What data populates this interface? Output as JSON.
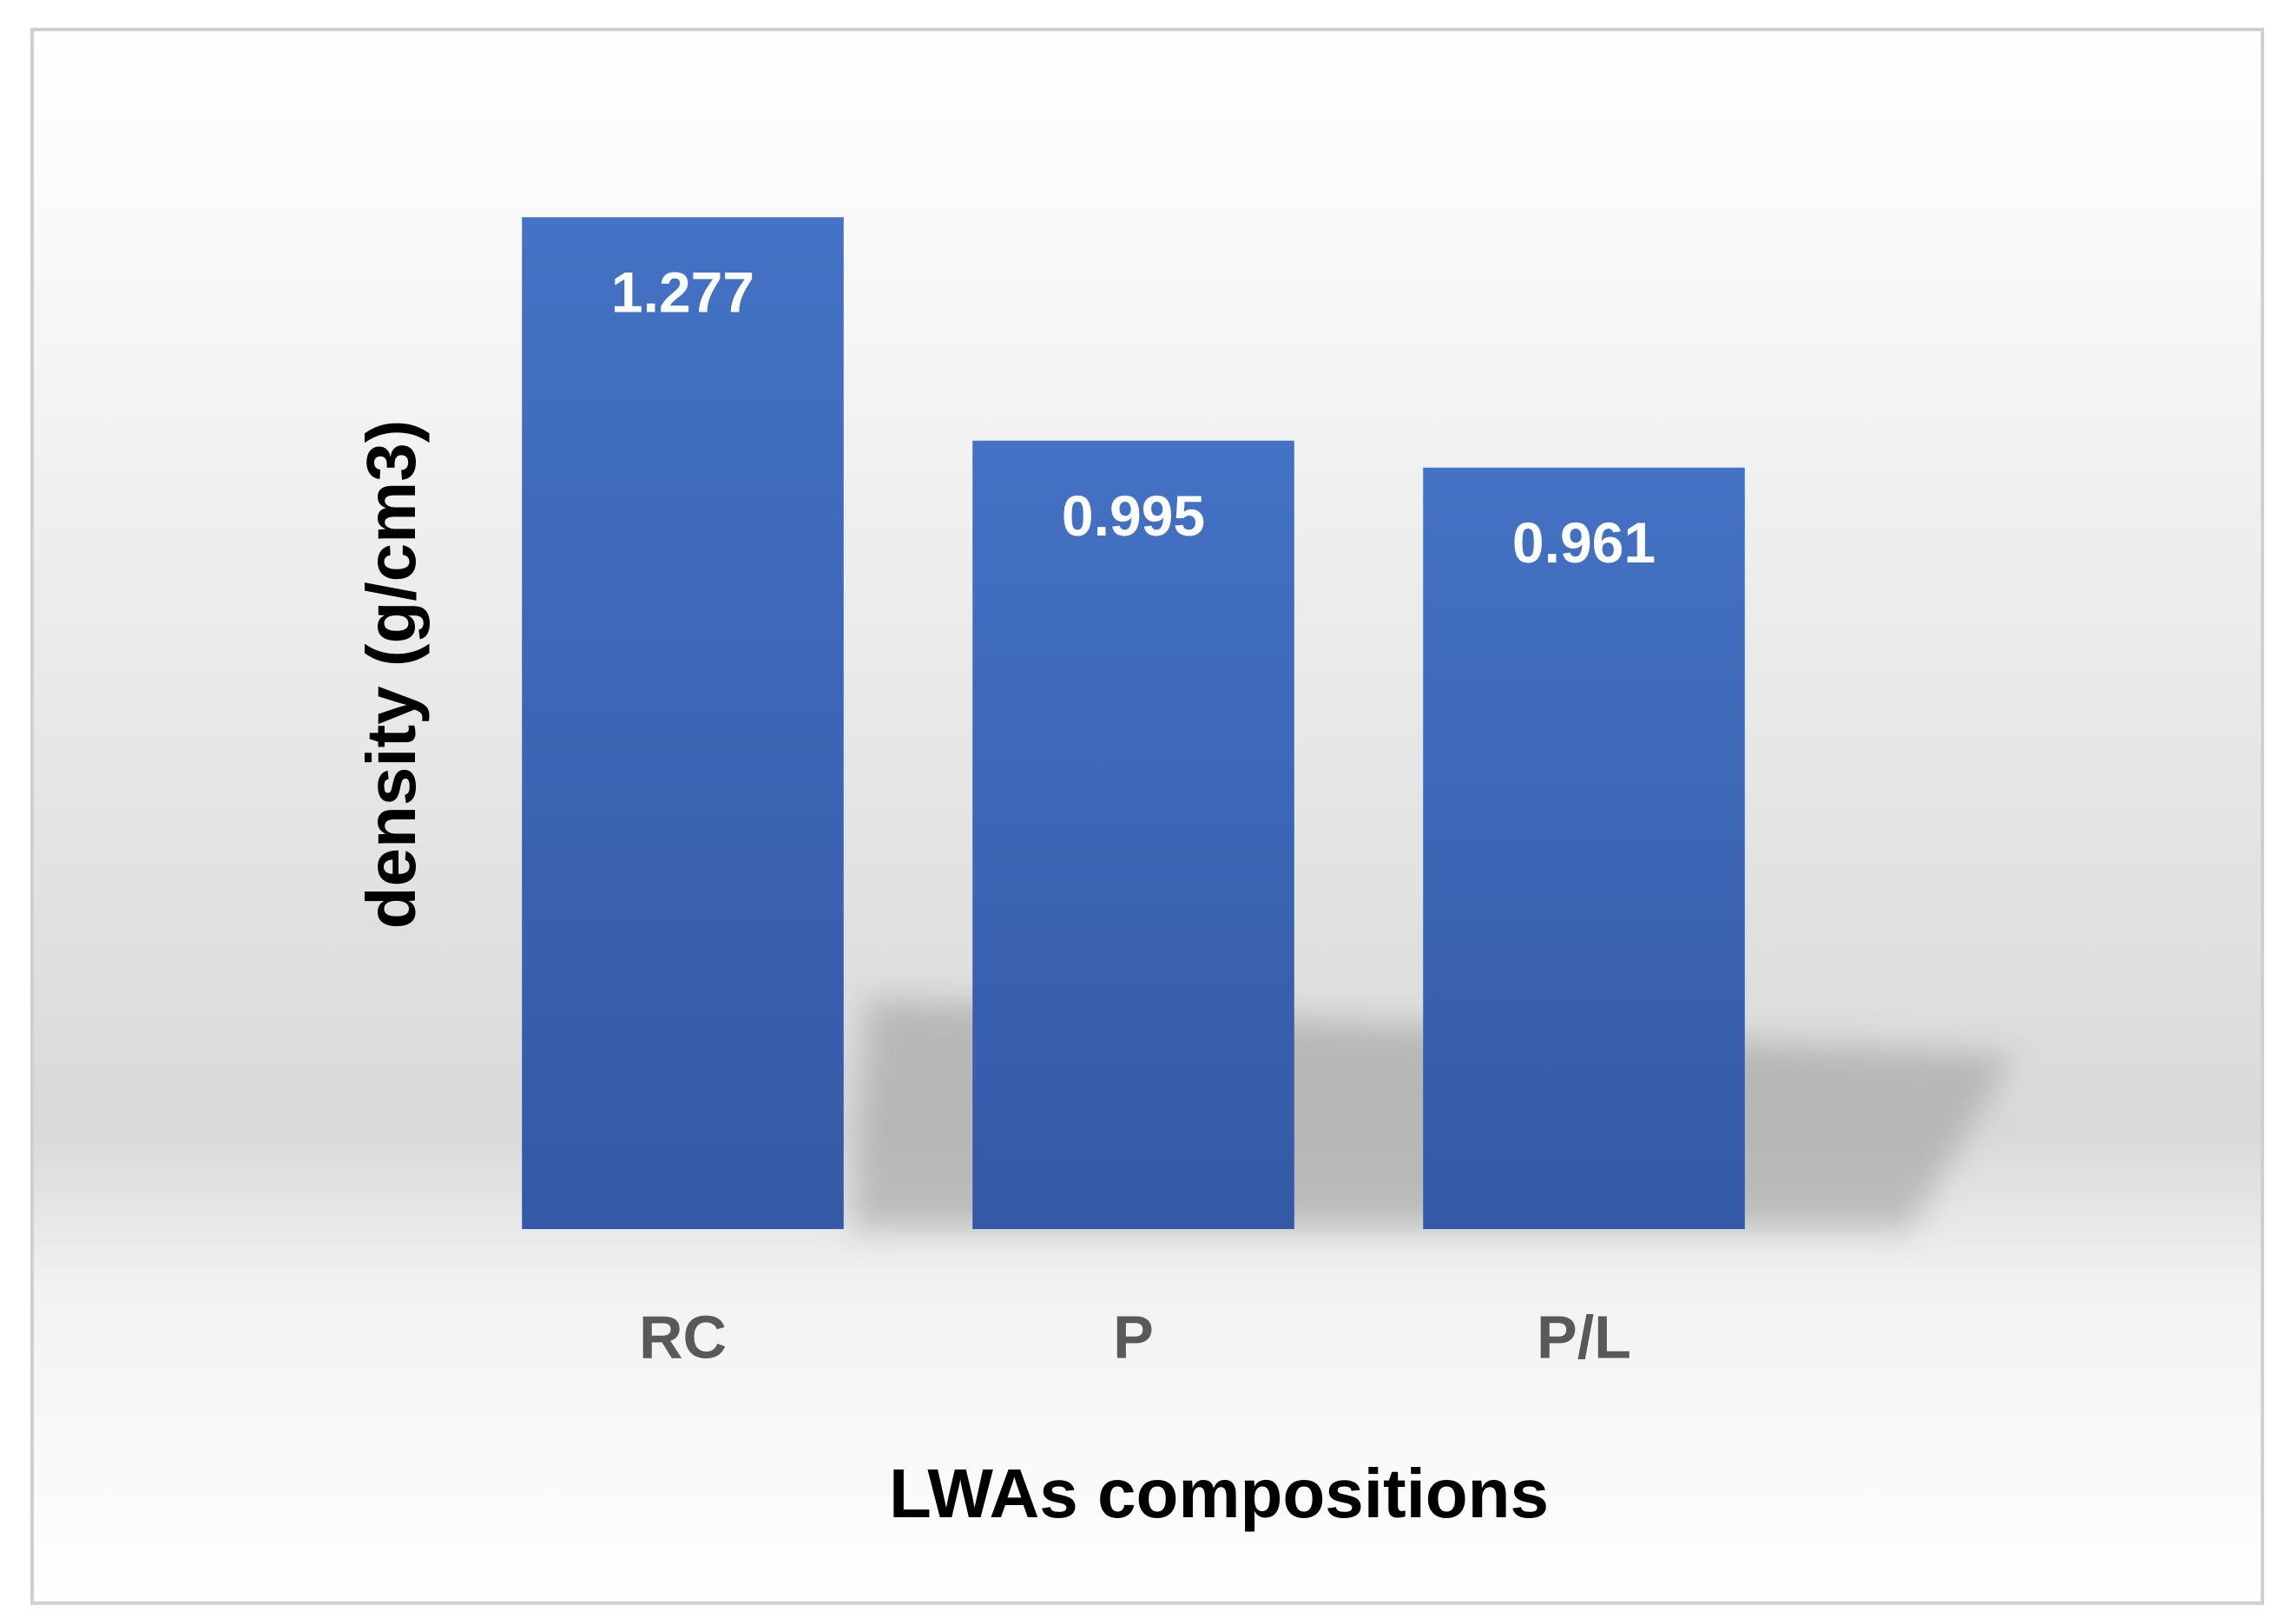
{
  "chart_data": {
    "type": "bar",
    "categories": [
      "RC",
      "P",
      "P/L"
    ],
    "values": [
      1.277,
      0.995,
      0.961
    ],
    "color": "#3b64b4",
    "xlabel": "LWAs compositions",
    "ylabel": "density (g/cm3)",
    "ylim": [
      0,
      1.4
    ]
  }
}
